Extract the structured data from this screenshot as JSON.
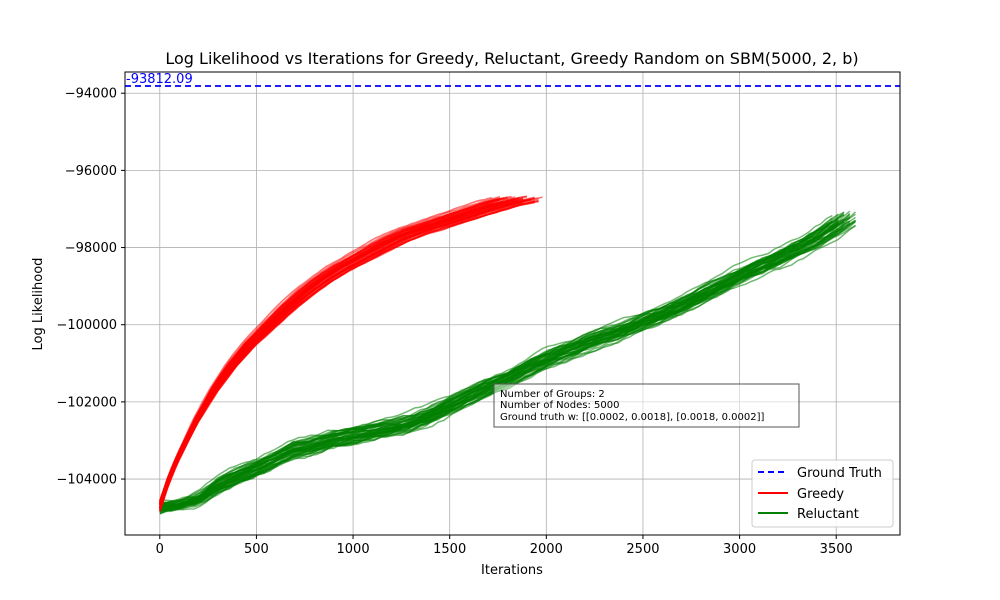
{
  "chart_data": {
    "type": "line",
    "title": "Log Likelihood vs Iterations for Greedy, Reluctant, Greedy Random on SBM(5000, 2, b)",
    "xlabel": "Iterations",
    "ylabel": "Log Likelihood",
    "xlim": [
      -180,
      3830
    ],
    "ylim": [
      -105450,
      -93450
    ],
    "xticks": [
      0,
      500,
      1000,
      1500,
      2000,
      2500,
      3000,
      3500
    ],
    "yticks": [
      -104000,
      -102000,
      -100000,
      -98000,
      -96000,
      -94000
    ],
    "grid": true,
    "legend_position": "bottom-right",
    "ground_truth": {
      "name": "Ground Truth",
      "value": -93812.09,
      "label": "-93812.09",
      "color": "#0000ff",
      "style": "dashed"
    },
    "series": [
      {
        "name": "Greedy",
        "color": "#ff0000",
        "runs": 50,
        "x": [
          0,
          50,
          100,
          200,
          300,
          400,
          500,
          600,
          700,
          800,
          900,
          1000,
          1100,
          1200,
          1300,
          1400,
          1500,
          1600,
          1700,
          1800,
          1900,
          2000
        ],
        "y": [
          -104700,
          -104000,
          -103450,
          -102500,
          -101700,
          -101050,
          -100500,
          -100050,
          -99600,
          -99200,
          -98850,
          -98550,
          -98300,
          -98050,
          -97800,
          -97600,
          -97450,
          -97300,
          -97150,
          -97000,
          -96850,
          -96750
        ]
      },
      {
        "name": "Reluctant",
        "color": "#008000",
        "runs": 50,
        "x": [
          0,
          100,
          200,
          300,
          400,
          500,
          600,
          700,
          800,
          900,
          1000,
          1100,
          1200,
          1300,
          1400,
          1500,
          1600,
          1700,
          1800,
          1900,
          2000,
          2100,
          2200,
          2300,
          2400,
          2500,
          2600,
          2700,
          2800,
          2900,
          3000,
          3100,
          3200,
          3300,
          3400,
          3500,
          3600
        ],
        "y": [
          -104750,
          -104700,
          -104550,
          -104200,
          -103950,
          -103750,
          -103500,
          -103250,
          -103150,
          -103000,
          -102900,
          -102800,
          -102700,
          -102600,
          -102400,
          -102150,
          -101900,
          -101650,
          -101450,
          -101200,
          -100950,
          -100750,
          -100550,
          -100350,
          -100200,
          -100000,
          -99800,
          -99600,
          -99350,
          -99100,
          -98850,
          -98600,
          -98400,
          -98150,
          -97900,
          -97600,
          -97250
        ]
      }
    ],
    "info_box": [
      "Number of Groups: 2",
      "Number of Nodes: 5000",
      "Ground truth w: [[0.0002, 0.0018], [0.0018, 0.0002]]"
    ]
  }
}
